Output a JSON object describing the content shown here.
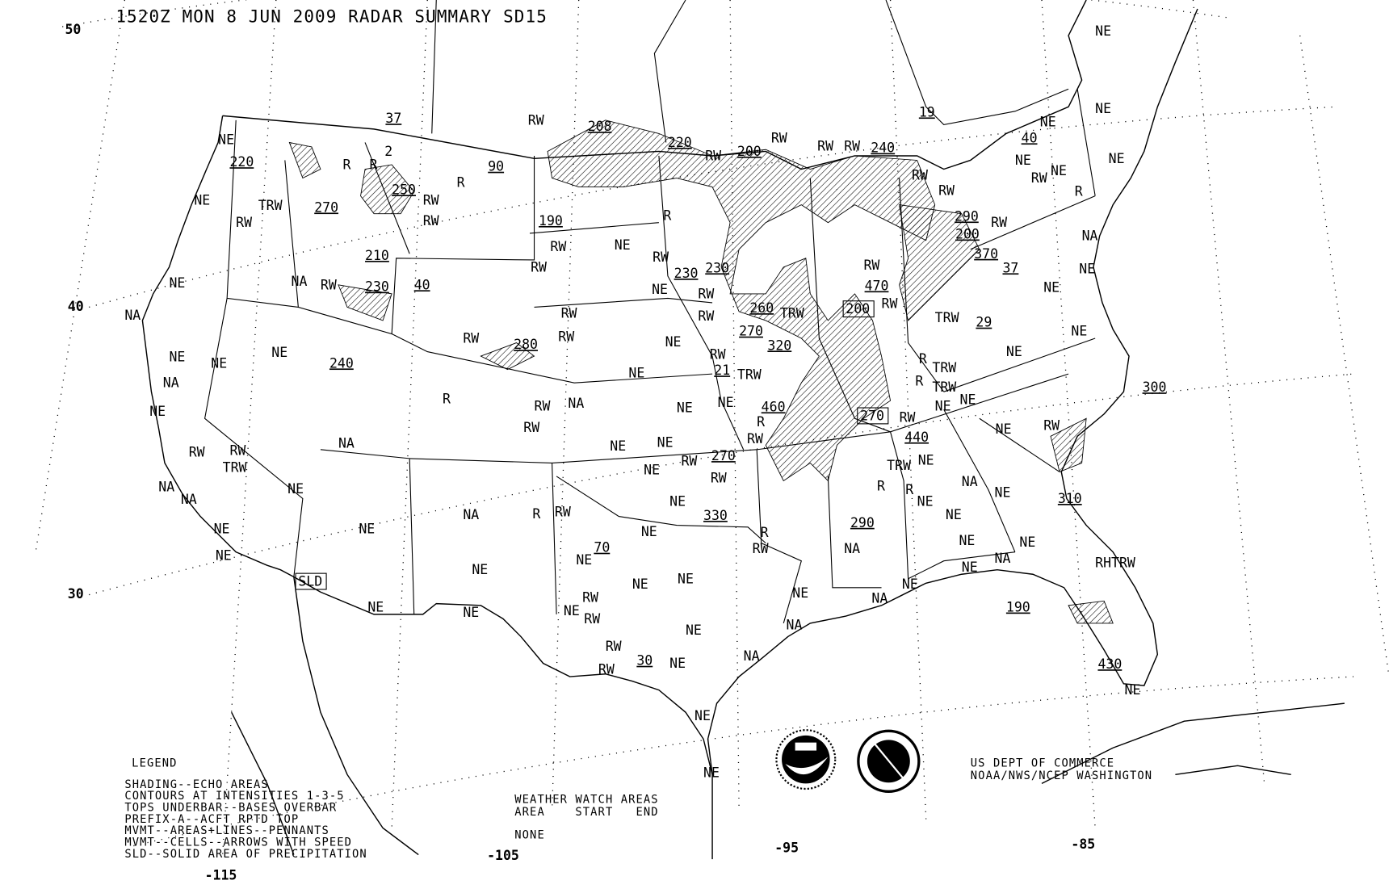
{
  "title": "1520Z MON  8 JUN 2009 RADAR SUMMARY SD15",
  "latitude_labels": [
    "50",
    "40",
    "30"
  ],
  "longitude_labels": [
    "-115",
    "-105",
    "-95",
    "-85"
  ],
  "legend": {
    "heading": "LEGEND",
    "lines": [
      "SHADING--ECHO AREAS",
      "CONTOURS AT INTENSITIES 1-3-5",
      "TOPS UNDERBAR--BASES OVERBAR",
      "PREFIX-A--ACFT RPTD TOP",
      "MVMT--AREAS+LINES--PENNANTS",
      "MVMT--CELLS--ARROWS WITH SPEED",
      "SLD--SOLID AREA OF PRECIPITATION"
    ]
  },
  "watch_areas": {
    "heading": "WEATHER WATCH AREAS",
    "columns": "AREA    START   END",
    "value": "NONE"
  },
  "credit": [
    "US DEPT OF COMMERCE",
    "NOAA/NWS/NCEP WASHINGTON"
  ],
  "logos": [
    "NOAA",
    "NATIONAL WEATHER SERVICE"
  ],
  "map": {
    "labels": [
      "NE",
      "NE",
      "NE",
      "40",
      "NE",
      "NE",
      "NE",
      "RW",
      "R",
      "NA",
      "NE",
      "NE",
      "NE",
      "300",
      "RW",
      "310",
      "RHTRW",
      "190",
      "430",
      "NE",
      "NE",
      "220",
      "NE",
      "TRW",
      "270",
      "RW",
      "2",
      "37",
      "R",
      "R",
      "90",
      "R",
      "250",
      "RW",
      "RW",
      "210",
      "NE",
      "NA",
      "RW",
      "230",
      "40",
      "NA",
      "NE",
      "NE",
      "NE",
      "240",
      "NA",
      "NE",
      "RW",
      "RW",
      "TRW",
      "NA",
      "NA",
      "NE",
      "NE",
      "NE",
      "NE",
      "NE",
      "NA",
      "NA",
      "NE",
      "NE",
      "RW",
      "208",
      "220",
      "RW",
      "200",
      "RW",
      "RW",
      "RW",
      "240",
      "19",
      "RW",
      "RW",
      "190",
      "RW",
      "NE",
      "RW",
      "R",
      "230",
      "230",
      "RW",
      "NE",
      "RW",
      "RW",
      "260",
      "TRW",
      "270",
      "320",
      "RW",
      "TRW",
      "21",
      "NE",
      "NE",
      "RW",
      "280",
      "RW",
      "RW",
      "RW",
      "NA",
      "RW",
      "R",
      "NE",
      "NE",
      "460",
      "R",
      "RW",
      "NE",
      "NE",
      "NE",
      "270",
      "RW",
      "RW",
      "NE",
      "330",
      "R",
      "RW",
      "NE",
      "70",
      "NE",
      "NE",
      "NE",
      "RW",
      "NE",
      "RW",
      "RW",
      "30",
      "NE",
      "RW",
      "NE",
      "NE",
      "NA",
      "NA",
      "NE",
      "NE",
      "R",
      "RW",
      "NA",
      "290",
      "R",
      "R",
      "TRW",
      "NE",
      "NE",
      "NA",
      "NE",
      "NE",
      "NE",
      "NE",
      "NE",
      "NA",
      "NE",
      "NA",
      "440",
      "RW",
      "NE",
      "NE",
      "TRW",
      "TRW",
      "R",
      "R",
      "NE",
      "RW",
      "470",
      "RW",
      "TRW",
      "29",
      "37",
      "370",
      "200",
      "290",
      "RW",
      "NE"
    ],
    "boxed_labels": [
      "SLD",
      "200",
      "270"
    ]
  }
}
